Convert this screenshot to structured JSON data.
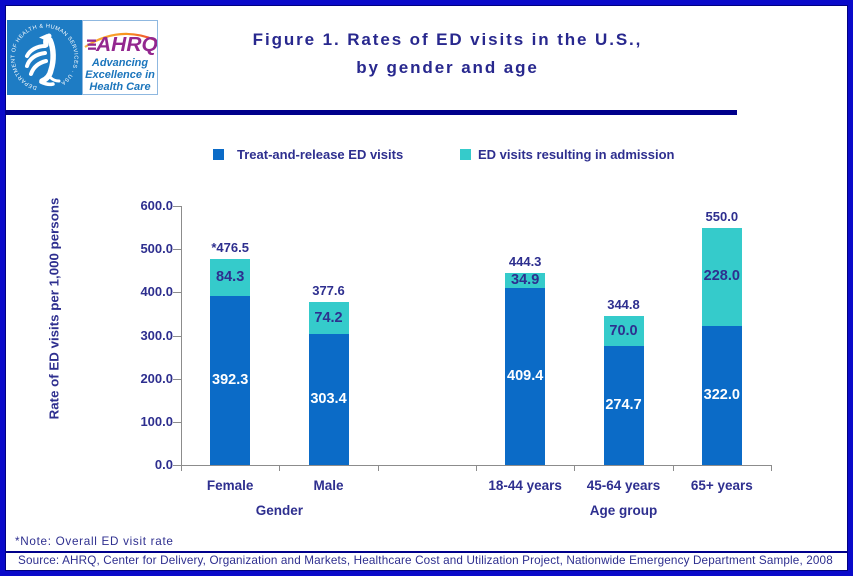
{
  "header": {
    "title_line1": "Figure 1. Rates of ED visits in the U.S.,",
    "title_line2": "by gender and age",
    "logo": {
      "hhs_circle_text": "DEPARTMENT OF HEALTH & HUMAN SERVICES · USA",
      "ahrq_acronym": "AHRQ",
      "ahrq_tagline_line1": "Advancing",
      "ahrq_tagline_line2": "Excellence in",
      "ahrq_tagline_line3": "Health Care"
    }
  },
  "legend": [
    {
      "label": "Treat-and-release ED visits",
      "color": "#0B6BC7"
    },
    {
      "label": "ED visits resulting in admission",
      "color": "#35CBCB"
    }
  ],
  "chart_data": {
    "type": "bar",
    "stacked": true,
    "title": "Figure 1. Rates of ED visits in the U.S., by gender and age",
    "ylabel": "Rate of ED visits per 1,000 persons",
    "ylim": [
      0,
      600
    ],
    "ytick_step": 100,
    "grid": false,
    "legend_position": "top",
    "categories": [
      "Female",
      "Male",
      "18-44 years",
      "45-64 years",
      "65+ years"
    ],
    "groups": [
      {
        "label": "Gender",
        "categories": [
          0,
          1
        ]
      },
      {
        "label": "Age group",
        "categories": [
          2,
          3,
          4
        ]
      }
    ],
    "series": [
      {
        "name": "Treat-and-release ED visits",
        "color": "#0B6BC7",
        "values": [
          392.3,
          303.4,
          409.4,
          274.7,
          322.0
        ],
        "labels": [
          "392.3",
          "303.4",
          "409.4",
          "274.7",
          "322.0"
        ],
        "label_color": "#FFFFFF"
      },
      {
        "name": "ED visits resulting in admission",
        "color": "#35CBCB",
        "values": [
          84.3,
          74.2,
          34.9,
          70.0,
          228.0
        ],
        "labels": [
          "84.3",
          "74.2",
          "34.9",
          "70.0",
          "228.0"
        ],
        "label_color": "#2E2F8F"
      }
    ],
    "total_labels": [
      "*476.5",
      "377.6",
      "444.3",
      "344.8",
      "550.0"
    ]
  },
  "footer": {
    "note": "*Note: Overall ED visit rate",
    "source": "Source: AHRQ, Center for Delivery, Organization and Markets, Healthcare Cost and Utilization Project, Nationwide Emergency Department Sample, 2008"
  },
  "colors": {
    "navy_text": "#2E2F8F",
    "axis_gray": "#8C8C8C",
    "border_outer": "#0A0ACA",
    "border_inner": "#000080",
    "rule_navy": "#00008B"
  }
}
